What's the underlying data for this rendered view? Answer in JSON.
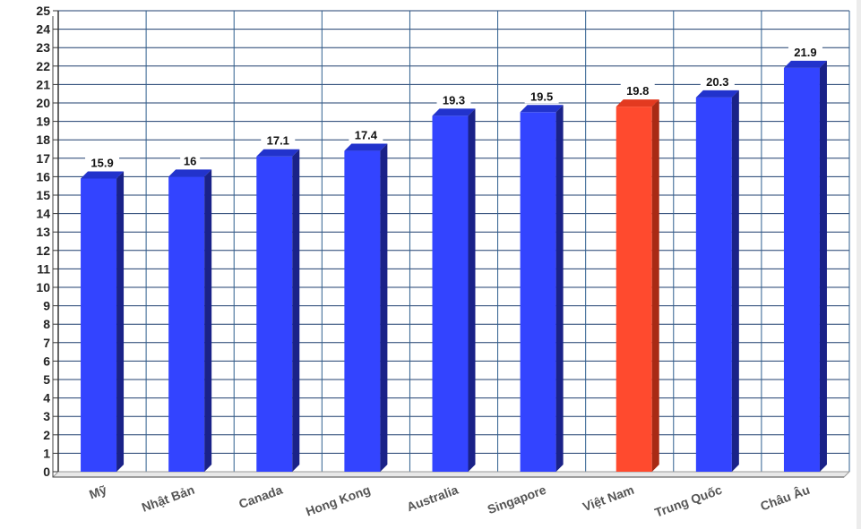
{
  "chart_data": {
    "type": "bar",
    "title": "",
    "xlabel": "",
    "ylabel": "",
    "ylim": [
      0,
      25
    ],
    "ytick_step": 1,
    "grid": true,
    "legend": "none",
    "categories": [
      "Mỹ",
      "Nhật Bản",
      "Canada",
      "Hong Kong",
      "Australia",
      "Singapore",
      "Việt Nam",
      "Trung Quốc",
      "Châu Âu"
    ],
    "values": [
      15.9,
      16,
      17.1,
      17.4,
      19.3,
      19.5,
      19.8,
      20.3,
      21.9
    ],
    "value_labels": [
      "15.9",
      "16",
      "17.1",
      "17.4",
      "19.3",
      "19.5",
      "19.8",
      "20.3",
      "21.9"
    ],
    "highlight": {
      "category": "Việt Nam",
      "value_label": "19.8",
      "value": 19.8
    },
    "colors": {
      "bar": "#3344ff",
      "bar_top": "#2233cc",
      "bar_side": "#1a2288",
      "highlight": "#ff4a2e",
      "highlight_top": "#e33a20",
      "highlight_side": "#a82a14",
      "grid_h": "#1f3f6f",
      "grid_v": "#2f5f8f"
    }
  }
}
